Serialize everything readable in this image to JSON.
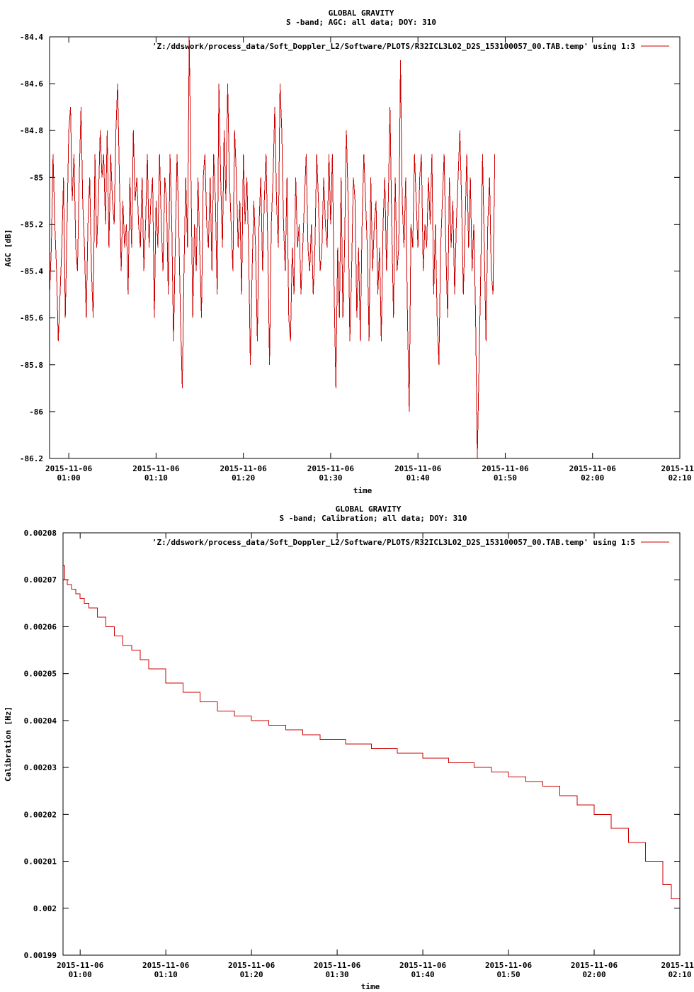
{
  "chart_data": [
    {
      "type": "line",
      "title": "GLOBAL GRAVITY",
      "subtitle": "S -band; AGC: all data; DOY: 310",
      "xlabel": "time",
      "ylabel": "AGC [dB]",
      "legend": {
        "label": "'Z:/ddswork/process_data/Soft_Doppler_L2/Software/PLOTS/R32ICL3L02_D2S_153100057_00.TAB.temp' using 1:3",
        "position": "top-right"
      },
      "x_range_minutes": [
        -2.2,
        70
      ],
      "ylim": [
        -86.2,
        -84.4
      ],
      "xticks": [
        {
          "t": 0,
          "line1": "2015-11-06",
          "line2": "01:00"
        },
        {
          "t": 10,
          "line1": "2015-11-06",
          "line2": "01:10"
        },
        {
          "t": 20,
          "line1": "2015-11-06",
          "line2": "01:20"
        },
        {
          "t": 30,
          "line1": "2015-11-06",
          "line2": "01:30"
        },
        {
          "t": 40,
          "line1": "2015-11-06",
          "line2": "01:40"
        },
        {
          "t": 50,
          "line1": "2015-11-06",
          "line2": "01:50"
        },
        {
          "t": 60,
          "line1": "2015-11-06",
          "line2": "02:00"
        },
        {
          "t": 70,
          "line1": "2015-11-",
          "line2": "02:10"
        }
      ],
      "yticks": [
        {
          "v": -84.4,
          "label": "-84.4"
        },
        {
          "v": -84.6,
          "label": "-84.6"
        },
        {
          "v": -84.8,
          "label": "-84.8"
        },
        {
          "v": -85.0,
          "label": "-85"
        },
        {
          "v": -85.2,
          "label": "-85.2"
        },
        {
          "v": -85.4,
          "label": "-85.4"
        },
        {
          "v": -85.6,
          "label": "-85.6"
        },
        {
          "v": -85.8,
          "label": "-85.8"
        },
        {
          "v": -86.0,
          "label": "-86"
        },
        {
          "v": -86.2,
          "label": "-86.2"
        }
      ],
      "series": [
        {
          "color": "#cc0000",
          "x_start_minutes": -2.2,
          "x_step_minutes": 0.2,
          "values": [
            -85.5,
            -85.3,
            -84.9,
            -85.2,
            -85.4,
            -85.7,
            -85.5,
            -85.3,
            -85.0,
            -85.6,
            -85.2,
            -84.8,
            -84.7,
            -85.1,
            -84.9,
            -85.3,
            -85.4,
            -85.0,
            -84.7,
            -85.1,
            -85.3,
            -85.6,
            -85.2,
            -85.0,
            -85.4,
            -85.6,
            -84.9,
            -85.3,
            -85.1,
            -84.8,
            -85.0,
            -84.9,
            -85.2,
            -84.8,
            -85.3,
            -84.9,
            -85.1,
            -85.2,
            -84.8,
            -84.6,
            -85.0,
            -85.4,
            -85.1,
            -85.3,
            -85.2,
            -85.5,
            -85.0,
            -85.3,
            -84.8,
            -85.1,
            -85.0,
            -85.2,
            -85.3,
            -85.0,
            -85.4,
            -85.2,
            -84.9,
            -85.3,
            -85.1,
            -85.0,
            -85.6,
            -85.1,
            -85.3,
            -84.9,
            -85.2,
            -85.4,
            -85.0,
            -85.1,
            -85.5,
            -84.9,
            -85.2,
            -85.7,
            -85.3,
            -84.9,
            -85.2,
            -85.6,
            -85.9,
            -85.4,
            -85.0,
            -85.3,
            -84.4,
            -85.0,
            -85.6,
            -85.2,
            -85.4,
            -85.0,
            -85.3,
            -85.6,
            -85.0,
            -84.9,
            -85.2,
            -85.3,
            -85.0,
            -85.4,
            -84.9,
            -85.1,
            -85.5,
            -84.6,
            -85.0,
            -85.3,
            -84.8,
            -85.1,
            -84.6,
            -85.0,
            -85.2,
            -85.4,
            -84.8,
            -85.0,
            -85.3,
            -85.1,
            -85.5,
            -84.9,
            -85.2,
            -85.0,
            -85.3,
            -85.8,
            -85.4,
            -85.1,
            -85.3,
            -85.7,
            -85.2,
            -85.0,
            -85.4,
            -85.1,
            -84.9,
            -85.3,
            -85.8,
            -85.2,
            -85.0,
            -84.7,
            -85.1,
            -85.3,
            -84.6,
            -84.8,
            -85.2,
            -85.4,
            -85.0,
            -85.6,
            -85.7,
            -85.3,
            -85.5,
            -85.0,
            -85.3,
            -85.2,
            -85.5,
            -85.3,
            -85.1,
            -84.9,
            -85.3,
            -85.4,
            -85.2,
            -85.5,
            -85.3,
            -84.9,
            -85.1,
            -85.4,
            -85.3,
            -85.0,
            -85.2,
            -85.3,
            -84.9,
            -85.2,
            -84.9,
            -85.5,
            -85.9,
            -85.3,
            -85.6,
            -85.0,
            -85.6,
            -85.3,
            -84.8,
            -85.1,
            -85.7,
            -85.4,
            -85.0,
            -85.1,
            -85.6,
            -85.3,
            -85.7,
            -85.2,
            -84.9,
            -85.1,
            -85.3,
            -85.7,
            -85.0,
            -85.4,
            -85.2,
            -85.1,
            -85.5,
            -85.3,
            -85.7,
            -85.2,
            -85.0,
            -85.4,
            -85.1,
            -84.7,
            -85.2,
            -85.6,
            -85.0,
            -85.4,
            -85.3,
            -84.5,
            -85.1,
            -85.3,
            -85.0,
            -85.6,
            -86.0,
            -85.2,
            -85.3,
            -84.9,
            -85.1,
            -85.3,
            -85.0,
            -84.9,
            -85.4,
            -85.2,
            -85.3,
            -85.0,
            -85.2,
            -84.9,
            -85.5,
            -85.2,
            -85.6,
            -85.8,
            -85.3,
            -85.1,
            -84.9,
            -85.3,
            -85.6,
            -85.0,
            -85.3,
            -85.1,
            -85.5,
            -85.2,
            -85.0,
            -84.8,
            -85.1,
            -85.5,
            -85.2,
            -84.9,
            -85.3,
            -85.0,
            -85.4,
            -85.2,
            -85.6,
            -86.2,
            -85.8,
            -85.4,
            -84.9,
            -85.3,
            -85.7,
            -85.2,
            -85.0,
            -85.4,
            -85.5,
            -84.9
          ]
        }
      ]
    },
    {
      "type": "line",
      "title": "GLOBAL GRAVITY",
      "subtitle": "S -band; Calibration; all data; DOY: 310",
      "xlabel": "time",
      "ylabel": "Calibration [Hz]",
      "legend": {
        "label": "'Z:/ddswork/process_data/Soft_Doppler_L2/Software/PLOTS/R32ICL3L02_D2S_153100057_00.TAB.temp' using 1:5",
        "position": "top-right"
      },
      "x_range_minutes": [
        -2.0,
        70
      ],
      "ylim": [
        0.00199,
        0.00208
      ],
      "xticks": [
        {
          "t": 0,
          "line1": "2015-11-06",
          "line2": "01:00"
        },
        {
          "t": 10,
          "line1": "2015-11-06",
          "line2": "01:10"
        },
        {
          "t": 20,
          "line1": "2015-11-06",
          "line2": "01:20"
        },
        {
          "t": 30,
          "line1": "2015-11-06",
          "line2": "01:30"
        },
        {
          "t": 40,
          "line1": "2015-11-06",
          "line2": "01:40"
        },
        {
          "t": 50,
          "line1": "2015-11-06",
          "line2": "01:50"
        },
        {
          "t": 60,
          "line1": "2015-11-06",
          "line2": "02:00"
        },
        {
          "t": 70,
          "line1": "2015-11-",
          "line2": "02:10"
        }
      ],
      "yticks": [
        {
          "v": 0.00208,
          "label": "0.00208"
        },
        {
          "v": 0.00207,
          "label": "0.00207"
        },
        {
          "v": 0.00206,
          "label": "0.00206"
        },
        {
          "v": 0.00205,
          "label": "0.00205"
        },
        {
          "v": 0.00204,
          "label": "0.00204"
        },
        {
          "v": 0.00203,
          "label": "0.00203"
        },
        {
          "v": 0.00202,
          "label": "0.00202"
        },
        {
          "v": 0.00201,
          "label": "0.00201"
        },
        {
          "v": 0.002,
          "label": "0.002"
        },
        {
          "v": 0.00199,
          "label": "0.00199"
        }
      ],
      "series": [
        {
          "color": "#cc0000",
          "step": true,
          "x": [
            -2.0,
            -1.8,
            -1.5,
            -1.0,
            -0.5,
            0.0,
            0.5,
            1.0,
            2.0,
            3.0,
            4.0,
            5.0,
            6.0,
            7.0,
            8.0,
            10.0,
            12.0,
            14.0,
            16.0,
            18.0,
            20.0,
            22.0,
            24.0,
            26.0,
            28.0,
            31.0,
            34.0,
            37.0,
            40.0,
            43.0,
            46.0,
            48.0,
            50.0,
            52.0,
            54.0,
            56.0,
            58.0,
            60.0,
            62.0,
            64.0,
            66.0,
            68.0,
            69.0,
            70.0
          ],
          "values": [
            0.002073,
            0.00207,
            0.002069,
            0.002068,
            0.002067,
            0.002066,
            0.002065,
            0.002064,
            0.002062,
            0.00206,
            0.002058,
            0.002056,
            0.002055,
            0.002053,
            0.002051,
            0.002048,
            0.002046,
            0.002044,
            0.002042,
            0.002041,
            0.00204,
            0.002039,
            0.002038,
            0.002037,
            0.002036,
            0.002035,
            0.002034,
            0.002033,
            0.002032,
            0.002031,
            0.00203,
            0.002029,
            0.002028,
            0.002027,
            0.002026,
            0.002024,
            0.002022,
            0.00202,
            0.002017,
            0.002014,
            0.00201,
            0.002005,
            0.002002,
            0.001999
          ]
        }
      ]
    }
  ]
}
